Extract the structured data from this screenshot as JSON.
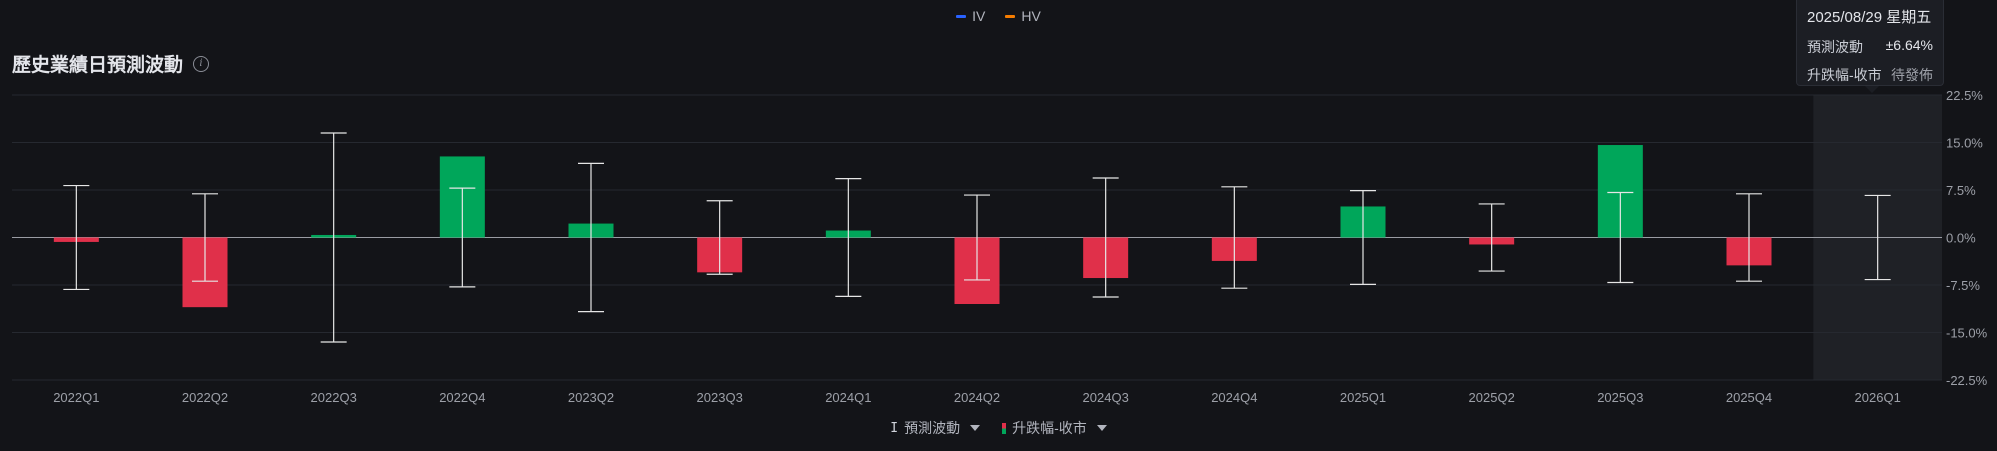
{
  "legend_top": [
    {
      "label": "IV",
      "color": "#2962ff"
    },
    {
      "label": "HV",
      "color": "#f57c00"
    }
  ],
  "header": {
    "title": "歷史業績日預測波動",
    "info_icon": "info-icon"
  },
  "tooltip": {
    "date": "2025/08/29 星期五",
    "rows": [
      {
        "label": "預測波動",
        "value": "±6.64%"
      },
      {
        "label": "升跌幅-收市",
        "value": "待發佈"
      }
    ]
  },
  "legend_bottom": [
    {
      "label": "預測波動",
      "icon": "range-icon"
    },
    {
      "label": "升跌幅-收市",
      "icon": "bar-icon"
    }
  ],
  "colors": {
    "up": "#00a65a",
    "down": "#e0304a",
    "range": "#e6e6e6",
    "grid": "#262930",
    "highlight": "#1f2126"
  },
  "chart_data": {
    "type": "bar",
    "categories": [
      "2022Q1",
      "2022Q2",
      "2022Q3",
      "2022Q4",
      "2023Q2",
      "2023Q3",
      "2024Q1",
      "2024Q2",
      "2024Q3",
      "2024Q4",
      "2025Q1",
      "2025Q2",
      "2025Q3",
      "2025Q4",
      "2026Q1"
    ],
    "series": [
      {
        "name": "升跌幅-收市",
        "values": [
          -0.7,
          -11.0,
          0.4,
          12.8,
          2.2,
          -5.5,
          1.1,
          -10.5,
          -6.4,
          -3.7,
          4.9,
          -1.1,
          14.6,
          -4.4,
          null
        ]
      },
      {
        "name": "預測波動",
        "values": [
          8.2,
          6.9,
          16.5,
          7.8,
          11.7,
          5.8,
          9.3,
          6.7,
          9.4,
          8.0,
          7.4,
          5.3,
          7.1,
          6.9,
          6.64
        ]
      }
    ],
    "yticks": [
      "22.5%",
      "15.0%",
      "7.5%",
      "0.0%",
      "-7.5%",
      "-15.0%",
      "-22.5%"
    ],
    "ylim": [
      -22.5,
      22.5
    ],
    "highlight_category": "2026Q1",
    "grid": true
  }
}
